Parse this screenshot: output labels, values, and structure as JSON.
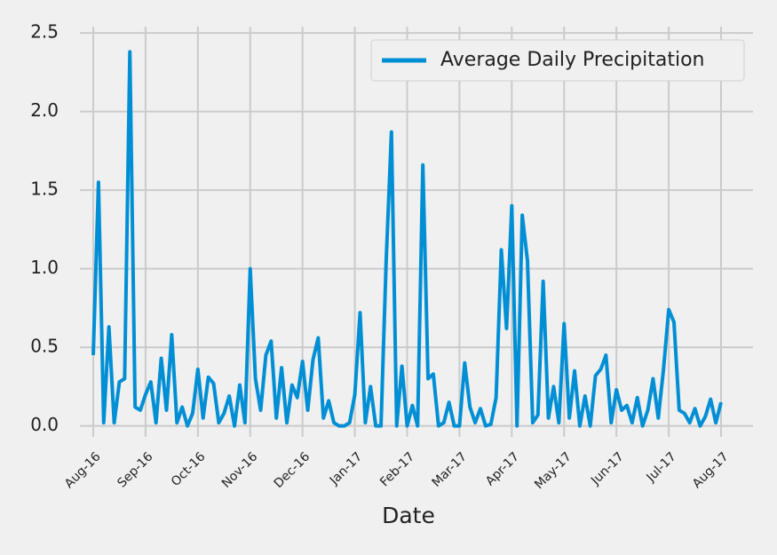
{
  "chart_data": {
    "type": "line",
    "x_label": "Date",
    "categories": [
      "Aug-16",
      null,
      null,
      null,
      null,
      null,
      null,
      null,
      null,
      null,
      "Sep-16",
      null,
      null,
      null,
      null,
      null,
      null,
      null,
      null,
      null,
      "Oct-16",
      null,
      null,
      null,
      null,
      null,
      null,
      null,
      null,
      null,
      "Nov-16",
      null,
      null,
      null,
      null,
      null,
      null,
      null,
      null,
      null,
      "Dec-16",
      null,
      null,
      null,
      null,
      null,
      null,
      null,
      null,
      null,
      "Jan-17",
      null,
      null,
      null,
      null,
      null,
      null,
      null,
      null,
      null,
      "Feb-17",
      null,
      null,
      null,
      null,
      null,
      null,
      null,
      null,
      null,
      "Mar-17",
      null,
      null,
      null,
      null,
      null,
      null,
      null,
      null,
      null,
      "Apr-17",
      null,
      null,
      null,
      null,
      null,
      null,
      null,
      null,
      null,
      "May-17",
      null,
      null,
      null,
      null,
      null,
      null,
      null,
      null,
      null,
      "Jun-17",
      null,
      null,
      null,
      null,
      null,
      null,
      null,
      null,
      null,
      "Jul-17",
      null,
      null,
      null,
      null,
      null,
      null,
      null,
      null,
      null,
      "Aug-17"
    ],
    "series": [
      {
        "name": "Average Daily Precipitation",
        "color": "#008fd5",
        "values": [
          0.45,
          1.55,
          0.02,
          0.63,
          0.02,
          0.28,
          0.3,
          2.38,
          0.12,
          0.1,
          0.2,
          0.28,
          0.02,
          0.43,
          0.1,
          0.58,
          0.02,
          0.12,
          0.0,
          0.08,
          0.36,
          0.05,
          0.31,
          0.27,
          0.02,
          0.08,
          0.19,
          0.0,
          0.26,
          0.02,
          1.0,
          0.3,
          0.1,
          0.45,
          0.54,
          0.05,
          0.37,
          0.02,
          0.26,
          0.18,
          0.41,
          0.1,
          0.42,
          0.56,
          0.05,
          0.16,
          0.02,
          0.0,
          0.0,
          0.02,
          0.2,
          0.72,
          0.02,
          0.25,
          0.0,
          0.0,
          1.06,
          1.87,
          0.0,
          0.38,
          0.0,
          0.13,
          0.0,
          1.66,
          0.3,
          0.33,
          0.0,
          0.02,
          0.15,
          0.0,
          0.0,
          0.4,
          0.12,
          0.02,
          0.11,
          0.0,
          0.01,
          0.18,
          1.12,
          0.62,
          1.4,
          0.0,
          1.34,
          1.05,
          0.02,
          0.07,
          0.92,
          0.05,
          0.25,
          0.02,
          0.65,
          0.05,
          0.35,
          0.0,
          0.19,
          0.0,
          0.32,
          0.36,
          0.45,
          0.02,
          0.23,
          0.1,
          0.13,
          0.02,
          0.18,
          0.0,
          0.1,
          0.3,
          0.05,
          0.36,
          0.74,
          0.66,
          0.1,
          0.08,
          0.02,
          0.11,
          0.0,
          0.06,
          0.17,
          0.02,
          0.15
        ]
      }
    ],
    "ylim": [
      -0.07,
      2.54
    ],
    "yticks": [
      {
        "value": 0,
        "label": "0.0"
      },
      {
        "value": 0.5,
        "label": "0.5"
      },
      {
        "value": 1,
        "label": "1.0"
      },
      {
        "value": 1.5,
        "label": "1.5"
      },
      {
        "value": 2,
        "label": "2.0"
      },
      {
        "value": 2.5,
        "label": "2.5"
      }
    ],
    "grid": true,
    "legend": "upper right"
  }
}
